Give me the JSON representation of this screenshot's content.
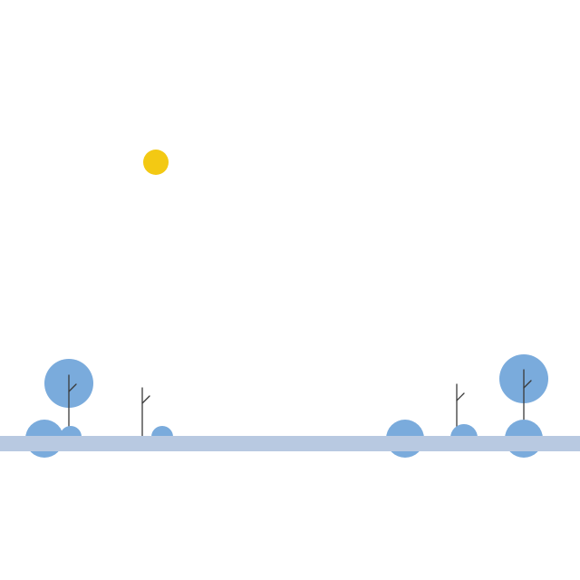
{
  "scene": {
    "description_free": true,
    "colors": {
      "background": "#ffffff",
      "sun": "#f3c913",
      "foliage": "#7aabdc",
      "ground": "#b8c9e1",
      "trunk": "#3a3a3a"
    },
    "icons": {
      "sun": "sun-icon",
      "tree": "tree-icon",
      "bush": "bush-icon",
      "sapling": "sapling-icon",
      "ground": "ground-strip"
    }
  }
}
